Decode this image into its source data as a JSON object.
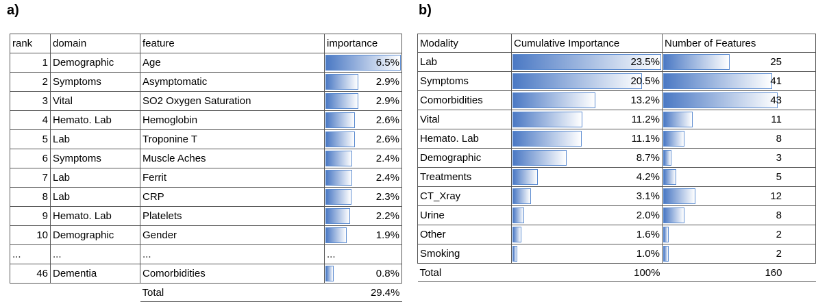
{
  "panel_a": {
    "label": "a)",
    "columns": [
      "rank",
      "domain",
      "feature",
      "importance"
    ],
    "rows": [
      [
        1,
        "Demographic",
        "Age",
        {
          "value": 6.5,
          "label": "6.5%"
        }
      ],
      [
        2,
        "Symptoms",
        "Asymptomatic",
        {
          "value": 2.9,
          "label": "2.9%"
        }
      ],
      [
        3,
        "Vital",
        "SO2 Oxygen Saturation",
        {
          "value": 2.9,
          "label": "2.9%"
        }
      ],
      [
        4,
        "Hemato. Lab",
        "Hemoglobin",
        {
          "value": 2.6,
          "label": "2.6%"
        }
      ],
      [
        5,
        "Lab",
        "Troponine T",
        {
          "value": 2.6,
          "label": "2.6%"
        }
      ],
      [
        6,
        "Symptoms",
        "Muscle Aches",
        {
          "value": 2.4,
          "label": "2.4%"
        }
      ],
      [
        7,
        "Lab",
        "Ferrit",
        {
          "value": 2.4,
          "label": "2.4%"
        }
      ],
      [
        8,
        "Lab",
        "CRP",
        {
          "value": 2.3,
          "label": "2.3%"
        }
      ],
      [
        9,
        "Hemato. Lab",
        "Platelets",
        {
          "value": 2.2,
          "label": "2.2%"
        }
      ],
      [
        10,
        "Demographic",
        "Gender",
        {
          "value": 1.9,
          "label": "1.9%"
        }
      ],
      [
        "...",
        "...",
        "...",
        "..."
      ],
      [
        46,
        "Dementia",
        "Comorbidities",
        {
          "value": 0.8,
          "label": "0.8%"
        }
      ]
    ],
    "total": {
      "label": "Total",
      "value": {
        "value": 29.4,
        "label": "29.4%"
      }
    }
  },
  "panel_b": {
    "label": "b)",
    "columns": [
      "Modality",
      "Cumulative Importance",
      "Number of Features"
    ],
    "rows": [
      [
        "Lab",
        {
          "value": 23.5,
          "label": "23.5%"
        },
        25
      ],
      [
        "Symptoms",
        {
          "value": 20.5,
          "label": "20.5%"
        },
        41
      ],
      [
        "Comorbidities",
        {
          "value": 13.2,
          "label": "13.2%"
        },
        43
      ],
      [
        "Vital",
        {
          "value": 11.2,
          "label": "11.2%"
        },
        11
      ],
      [
        "Hemato. Lab",
        {
          "value": 11.1,
          "label": "11.1%"
        },
        8
      ],
      [
        "Demographic",
        {
          "value": 8.7,
          "label": "8.7%"
        },
        3
      ],
      [
        "Treatments",
        {
          "value": 4.2,
          "label": "4.2%"
        },
        5
      ],
      [
        "CT_Xray",
        {
          "value": 3.1,
          "label": "3.1%"
        },
        12
      ],
      [
        "Urine",
        {
          "value": 2.0,
          "label": "2.0%"
        },
        8
      ],
      [
        "Other",
        {
          "value": 1.6,
          "label": "1.6%"
        },
        2
      ],
      [
        "Smoking",
        {
          "value": 1.0,
          "label": "1.0%"
        },
        2
      ]
    ],
    "total": [
      "Total",
      "100%",
      160
    ]
  }
}
